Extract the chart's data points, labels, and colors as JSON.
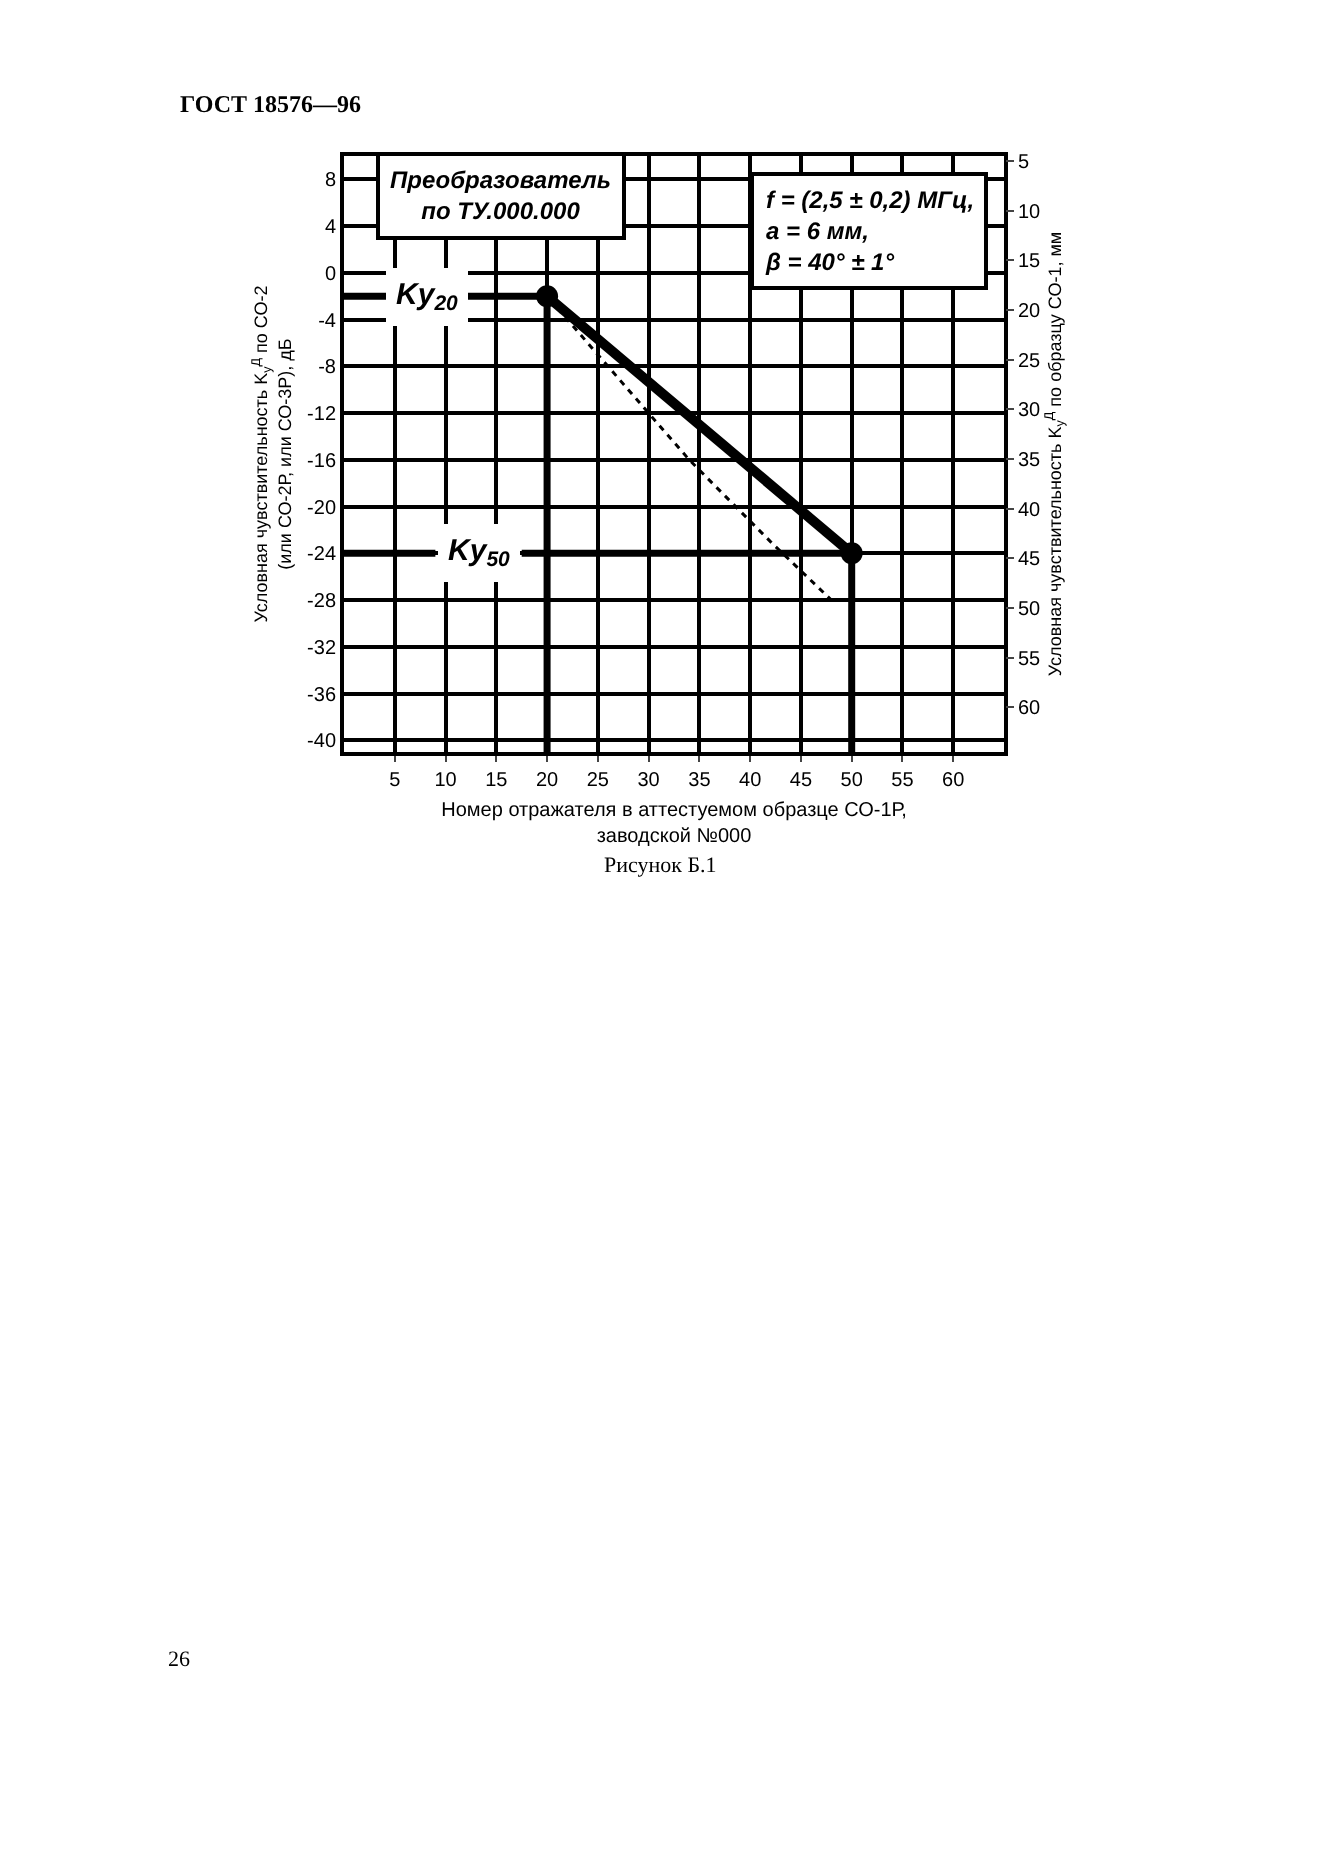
{
  "chart_data": {
    "type": "line",
    "title": "ГОСТ 18576—96",
    "xlabel": "Номер отражателя в аттестуемом образце СО-1Р, заводской №000",
    "ylabel": "Условная чувствительность K$_{y}$$^{Д}$ по СО-2 (или СО-2Р, или СО-3Р), дБ",
    "y2label": "Условная чувствительность K$_{y}$$^{Д}$ по образцу СО-1, мм",
    "xlim": [
      0,
      65
    ],
    "xticks": [
      5,
      10,
      15,
      20,
      25,
      30,
      35,
      40,
      45,
      50,
      55,
      60
    ],
    "ylim": [
      -41,
      10
    ],
    "yticks": [
      8,
      4,
      0,
      -4,
      -8,
      -12,
      -16,
      -20,
      -24,
      -28,
      -32,
      -36,
      -40
    ],
    "y2lim": [
      64.5,
      4.5
    ],
    "y2ticks": [
      5,
      10,
      15,
      20,
      25,
      30,
      35,
      40,
      45,
      50,
      55,
      60
    ],
    "grid": true,
    "series": [
      {
        "color": "#000000",
        "x": [
          20,
          50
        ],
        "values": [
          -2,
          -24
        ],
        "marker": "circle",
        "line_style": "solid"
      },
      {
        "color": "#000000",
        "x": [
          21,
          24,
          27,
          30,
          34,
          38,
          42,
          45,
          48
        ],
        "values": [
          -3,
          -6,
          -9,
          -12,
          -16,
          -19.5,
          -23,
          -25.5,
          -28
        ],
        "marker": "none",
        "line_style": "dotted"
      },
      {
        "color": "#000000",
        "x": [
          20,
          20
        ],
        "values": [
          -41,
          -2
        ],
        "marker": "none",
        "line_style": "solid"
      },
      {
        "color": "#000000",
        "x": [
          50,
          50
        ],
        "values": [
          -41,
          -24
        ],
        "marker": "none",
        "line_style": "solid"
      },
      {
        "color": "#000000",
        "x": [
          0,
          4.5,
          8,
          12,
          20
        ],
        "values": [
          -2,
          -2,
          null,
          -2,
          -2
        ],
        "marker": "none",
        "line_style": "solid"
      },
      {
        "color": "#000000",
        "x": [
          0,
          9,
          13,
          17.5,
          50
        ],
        "values": [
          -24,
          -24,
          null,
          -24,
          -24
        ],
        "marker": "none",
        "line_style": "solid"
      }
    ],
    "annotations": [
      "Ky$_{20}$",
      "Ky$_{50}$",
      "Преобразователь по ТУ.000.000",
      "f = (2,5 ± 0,2) МГц, a = 6 мм, β = 40° ± 1°",
      "Рисунок Б.1",
      "26"
    ]
  }
}
